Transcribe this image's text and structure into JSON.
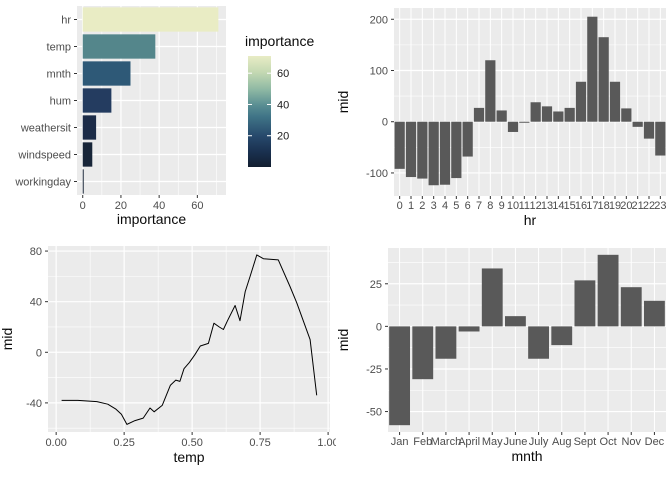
{
  "figure": {
    "background": "#FFFFFF",
    "panel_bg": "#EBEBEB",
    "grid_color": "#FFFFFF",
    "bar_color": "#595959",
    "tick_label_color": "#4D4D4D",
    "axis_title_color": "#0A0A0A",
    "tick_mark_color": "#333333",
    "line_color": "#000000"
  },
  "chart_data": [
    {
      "id": "importance",
      "type": "bar",
      "orientation": "horizontal",
      "title": "",
      "categories": [
        "hr",
        "temp",
        "mnth",
        "hum",
        "weathersit",
        "windspeed",
        "workingday"
      ],
      "values": [
        71,
        38,
        25,
        15,
        7,
        5,
        0.5
      ],
      "bar_colors": [
        "#E9ECC4",
        "#54868B",
        "#2E5977",
        "#243C60",
        "#1C2C48",
        "#182639",
        "#0F1D2F"
      ],
      "xlabel": "importance",
      "ylabel": "",
      "xticks": [
        0,
        20,
        40,
        60
      ],
      "xlim": [
        -3,
        75
      ],
      "grid": true,
      "legend": {
        "position": "right",
        "title": "importance",
        "min": 0,
        "max": 71,
        "ticks": [
          20,
          40,
          60
        ],
        "gradient": [
          [
            0.0,
            "#121E30"
          ],
          [
            0.14,
            "#1A3150"
          ],
          [
            0.28,
            "#27496C"
          ],
          [
            0.45,
            "#3F7386"
          ],
          [
            0.55,
            "#578C92"
          ],
          [
            0.7,
            "#8FB9A4"
          ],
          [
            0.85,
            "#C3D8B2"
          ],
          [
            1.0,
            "#E8ECC5"
          ]
        ]
      }
    },
    {
      "id": "mid-by-hr",
      "type": "bar",
      "orientation": "vertical",
      "title": "",
      "categories": [
        "0",
        "1",
        "2",
        "3",
        "4",
        "5",
        "6",
        "7",
        "8",
        "9",
        "10",
        "11",
        "12",
        "13",
        "14",
        "15",
        "16",
        "17",
        "18",
        "19",
        "20",
        "21",
        "22",
        "23"
      ],
      "values": [
        -92,
        -108,
        -111,
        -124,
        -123,
        -110,
        -68,
        27,
        120,
        22,
        -20,
        -2,
        38,
        30,
        20,
        27,
        78,
        205,
        165,
        78,
        26,
        -10,
        -33,
        -66
      ],
      "xlabel": "hr",
      "ylabel": "mid",
      "yticks": [
        -100,
        0,
        100,
        200
      ],
      "ylim": [
        -145,
        222
      ],
      "grid": true
    },
    {
      "id": "mid-by-temp",
      "type": "line",
      "title": "",
      "points": [
        [
          0.02,
          -38
        ],
        [
          0.08,
          -38
        ],
        [
          0.15,
          -39
        ],
        [
          0.19,
          -41
        ],
        [
          0.22,
          -45
        ],
        [
          0.24,
          -49
        ],
        [
          0.26,
          -57
        ],
        [
          0.29,
          -54
        ],
        [
          0.32,
          -52
        ],
        [
          0.345,
          -44
        ],
        [
          0.36,
          -47
        ],
        [
          0.39,
          -42
        ],
        [
          0.42,
          -26
        ],
        [
          0.44,
          -22
        ],
        [
          0.455,
          -23
        ],
        [
          0.47,
          -13
        ],
        [
          0.49,
          -8
        ],
        [
          0.51,
          -2
        ],
        [
          0.53,
          5
        ],
        [
          0.56,
          7
        ],
        [
          0.58,
          23
        ],
        [
          0.6,
          20
        ],
        [
          0.615,
          18
        ],
        [
          0.63,
          25
        ],
        [
          0.658,
          37
        ],
        [
          0.676,
          25
        ],
        [
          0.695,
          48
        ],
        [
          0.713,
          60
        ],
        [
          0.738,
          77
        ],
        [
          0.762,
          74
        ],
        [
          0.817,
          73
        ],
        [
          0.86,
          52
        ],
        [
          0.885,
          39
        ],
        [
          0.934,
          10
        ],
        [
          0.958,
          -34
        ]
      ],
      "xlabel": "temp",
      "ylabel": "mid",
      "xticks": [
        0,
        0.25,
        0.5,
        0.75,
        1
      ],
      "xtick_labels": [
        "0.00",
        "0.25",
        "0.50",
        "0.75",
        "1.00"
      ],
      "xlim": [
        -0.03,
        1.007
      ],
      "yticks": [
        -40,
        0,
        40,
        80
      ],
      "ylim": [
        -63,
        84
      ],
      "grid": true
    },
    {
      "id": "mid-by-mnth",
      "type": "bar",
      "orientation": "vertical",
      "title": "",
      "categories": [
        "Jan",
        "Feb",
        "March",
        "April",
        "May",
        "June",
        "July",
        "Aug",
        "Sept",
        "Oct",
        "Nov",
        "Dec"
      ],
      "values": [
        -58,
        -31,
        -19,
        -3,
        34,
        6,
        -19,
        -11,
        27,
        42,
        23,
        15
      ],
      "xlabel": "mnth",
      "ylabel": "mid",
      "yticks": [
        -50,
        -25,
        0,
        25
      ],
      "ylim": [
        -62,
        46
      ],
      "grid": true
    }
  ]
}
